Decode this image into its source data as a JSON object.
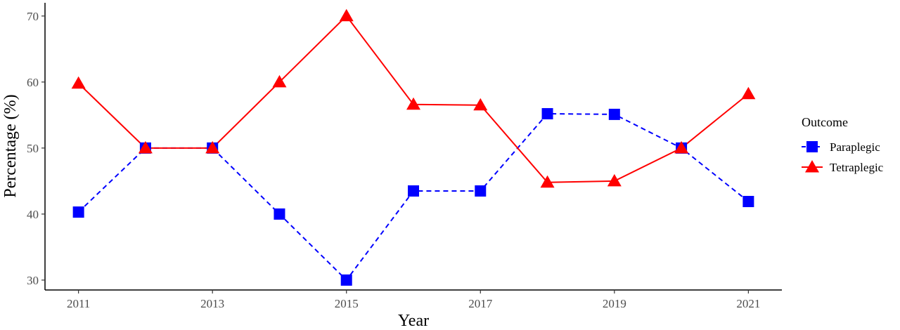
{
  "chart_data": {
    "type": "line",
    "title": "",
    "xlabel": "Year",
    "ylabel": "Percentage (%)",
    "x": [
      2011,
      2012,
      2013,
      2014,
      2015,
      2016,
      2017,
      2018,
      2019,
      2020,
      2021
    ],
    "x_ticks": [
      "2011",
      "2013",
      "2015",
      "2017",
      "2019",
      "2021"
    ],
    "y_ticks": [
      "30",
      "40",
      "50",
      "60",
      "70"
    ],
    "ylim": [
      28.5,
      72
    ],
    "xlim": [
      2010.5,
      2021.5
    ],
    "grid": false,
    "legend": {
      "title": "Outcome",
      "placement": "right"
    },
    "series": [
      {
        "name": "Paraplegic",
        "color": "#0000ff",
        "marker": "square",
        "line_style": "dashed",
        "values": [
          40.3,
          50,
          50,
          40,
          30,
          43.5,
          43.5,
          55.2,
          55.1,
          50,
          41.9
        ]
      },
      {
        "name": "Tetraplegic",
        "color": "#ff0000",
        "marker": "triangle",
        "line_style": "solid",
        "values": [
          59.8,
          50,
          50,
          60,
          70,
          56.6,
          56.5,
          44.8,
          45,
          50,
          58.2
        ]
      }
    ]
  }
}
